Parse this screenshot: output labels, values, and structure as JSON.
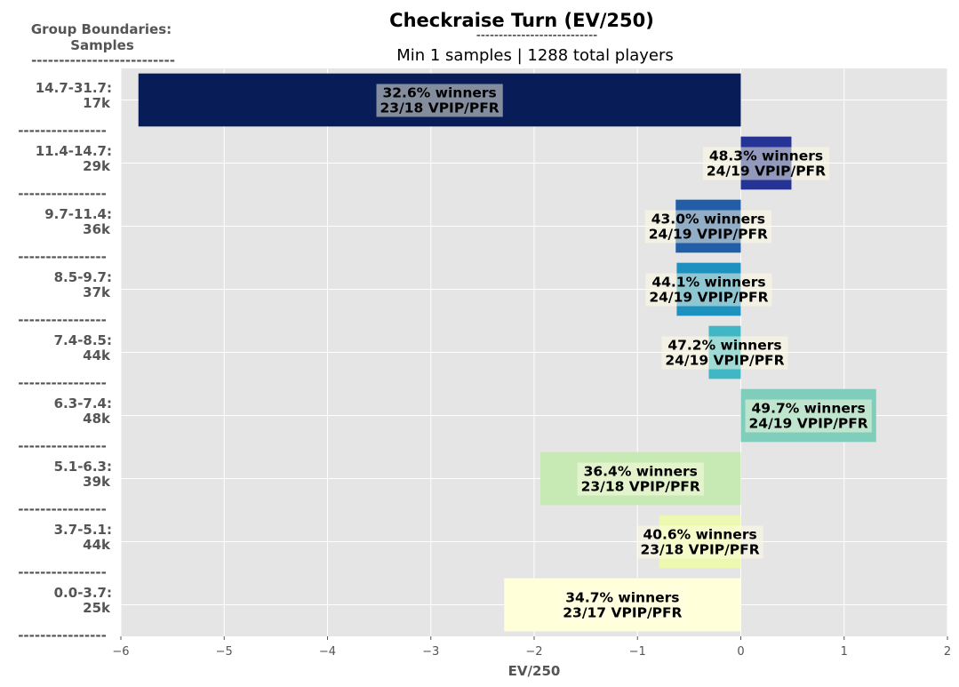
{
  "chart_data": {
    "type": "bar",
    "orientation": "horizontal",
    "title": "Checkraise Turn (EV/250)",
    "title_separator": "---------------------------",
    "subtitle": "Min 1 samples | 1288 total players",
    "side_title_line1": "Group Boundaries:",
    "side_title_line2": "Samples",
    "side_title_separator": "--------------------------",
    "category_separator": "----------------",
    "xlabel": "EV/250",
    "ylabel": "",
    "xlim": [
      -6,
      2
    ],
    "xticks": [
      -6,
      -5,
      -4,
      -3,
      -2,
      -1,
      0,
      1,
      2
    ],
    "xtick_labels": [
      "−6",
      "−5",
      "−4",
      "−3",
      "−2",
      "−1",
      "0",
      "1",
      "2"
    ],
    "grid": true,
    "categories": [
      {
        "range": "14.7-31.7:",
        "samples": "17k",
        "value": -5.83,
        "winners": "32.6% winners",
        "vpip_pfr": "23/18 VPIP/PFR",
        "color": "#081d58"
      },
      {
        "range": "11.4-14.7:",
        "samples": "29k",
        "value": 0.49,
        "winners": "48.3% winners",
        "vpip_pfr": "24/19 VPIP/PFR",
        "color": "#253494"
      },
      {
        "range": "9.7-11.4:",
        "samples": "36k",
        "value": -0.63,
        "winners": "43.0% winners",
        "vpip_pfr": "24/19 VPIP/PFR",
        "color": "#225ea8"
      },
      {
        "range": "8.5-9.7:",
        "samples": "37k",
        "value": -0.62,
        "winners": "44.1% winners",
        "vpip_pfr": "24/19 VPIP/PFR",
        "color": "#1d91c0"
      },
      {
        "range": "7.4-8.5:",
        "samples": "44k",
        "value": -0.31,
        "winners": "47.2% winners",
        "vpip_pfr": "24/19 VPIP/PFR",
        "color": "#41b6c4"
      },
      {
        "range": "6.3-7.4:",
        "samples": "48k",
        "value": 1.31,
        "winners": "49.7% winners",
        "vpip_pfr": "24/19 VPIP/PFR",
        "color": "#7fcdbb"
      },
      {
        "range": "5.1-6.3:",
        "samples": "39k",
        "value": -1.94,
        "winners": "36.4% winners",
        "vpip_pfr": "23/18 VPIP/PFR",
        "color": "#c7e9b4"
      },
      {
        "range": "3.7-5.1:",
        "samples": "44k",
        "value": -0.79,
        "winners": "40.6% winners",
        "vpip_pfr": "23/18 VPIP/PFR",
        "color": "#edf8b1"
      },
      {
        "range": "0.0-3.7:",
        "samples": "25k",
        "value": -2.29,
        "winners": "34.7% winners",
        "vpip_pfr": "23/17 VPIP/PFR",
        "color": "#ffffd9"
      }
    ],
    "colors": {
      "plot_background": "#e5e5e5",
      "grid": "#ffffff",
      "label_box": "#fffde4"
    }
  }
}
